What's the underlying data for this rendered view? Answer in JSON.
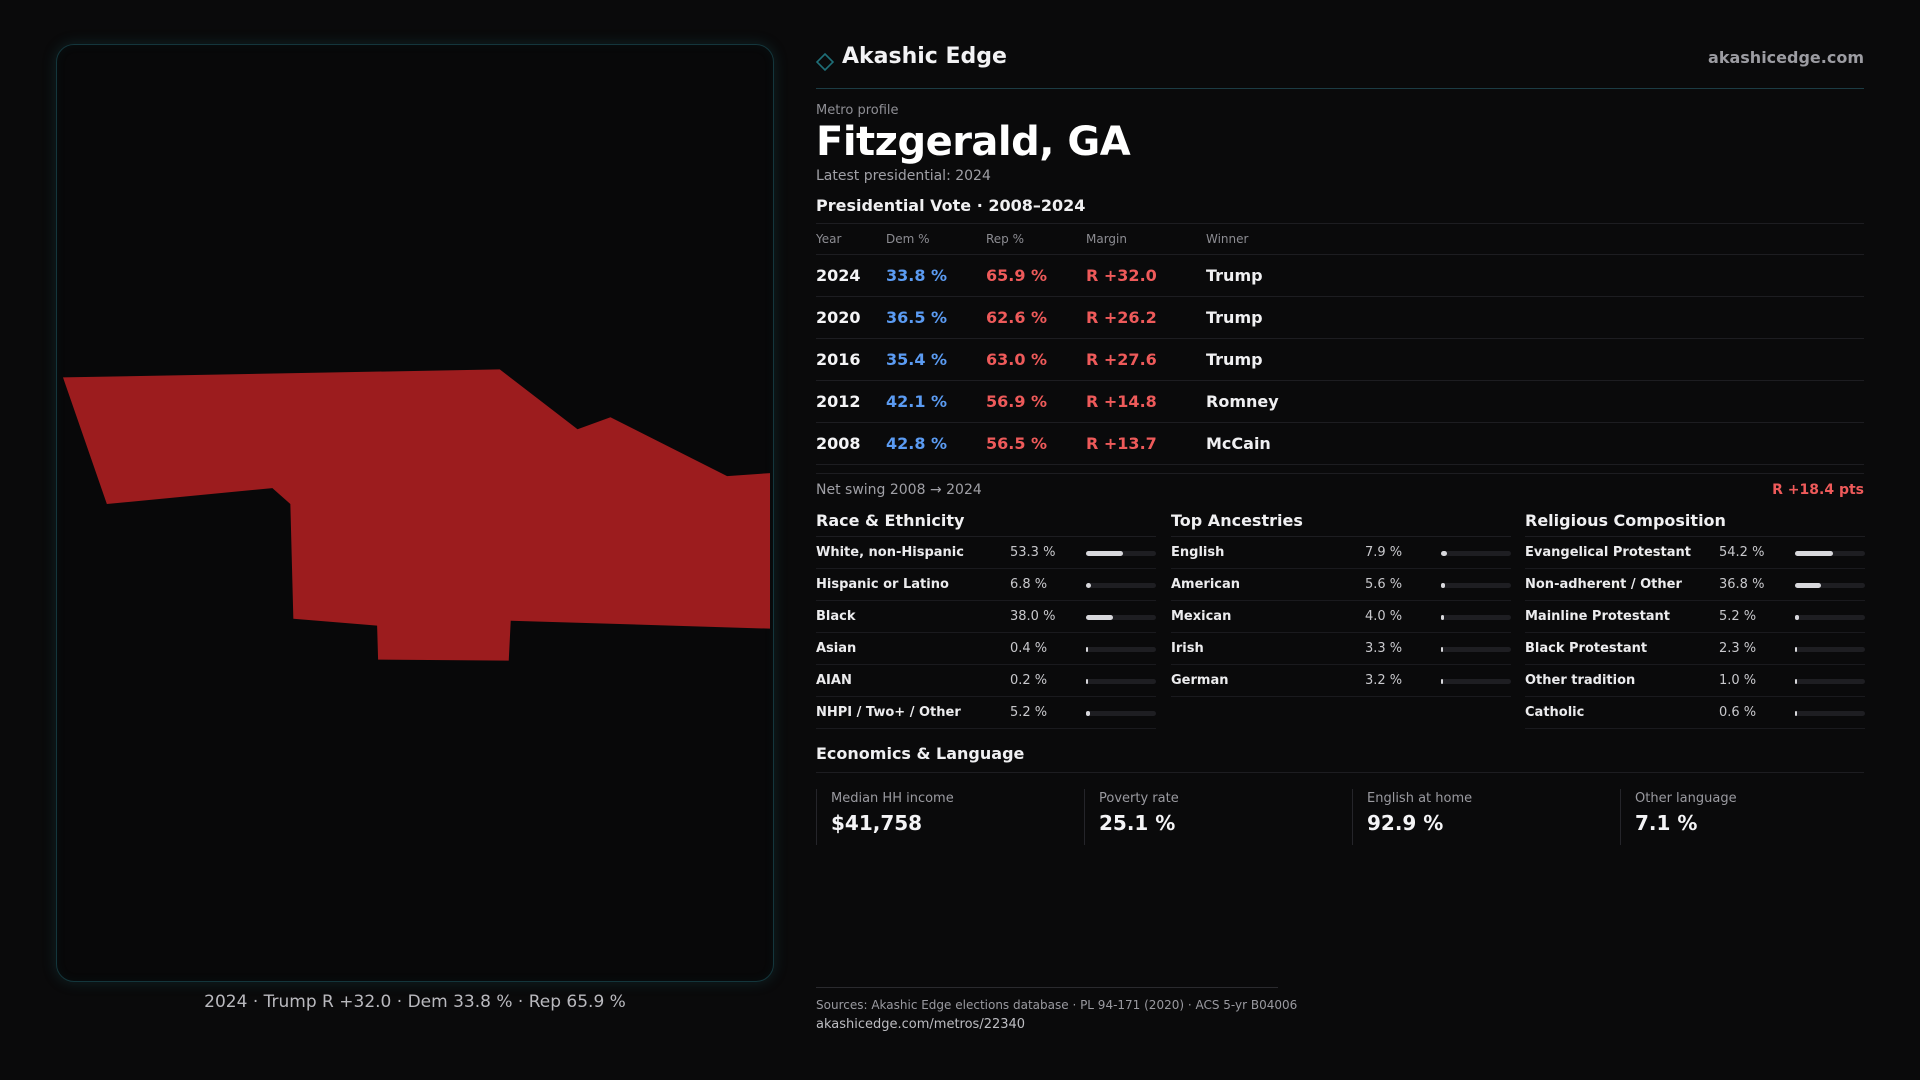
{
  "brand": {
    "name": "Akashic Edge",
    "url": "akashicedge.com",
    "accent_color": "#1f6f78",
    "icon": "diamond-outline-icon"
  },
  "map": {
    "fill_color": "#9c1c1e",
    "caption": "2024 · Trump R +32.0 · Dem 33.8 % · Rep 65.9 %"
  },
  "profile": {
    "eyebrow": "Metro profile",
    "title": "Fitzgerald, GA",
    "latest": "Latest presidential: 2024"
  },
  "presidential": {
    "title": "Presidential Vote · 2008–2024",
    "columns": [
      "Year",
      "Dem %",
      "Rep %",
      "Margin",
      "Winner"
    ],
    "rows": [
      {
        "year": "2024",
        "dem": "33.8 %",
        "rep": "65.9 %",
        "margin": "R +32.0",
        "winner": "Trump"
      },
      {
        "year": "2020",
        "dem": "36.5 %",
        "rep": "62.6 %",
        "margin": "R +26.2",
        "winner": "Trump"
      },
      {
        "year": "2016",
        "dem": "35.4 %",
        "rep": "63.0 %",
        "margin": "R +27.6",
        "winner": "Trump"
      },
      {
        "year": "2012",
        "dem": "42.1 %",
        "rep": "56.9 %",
        "margin": "R +14.8",
        "winner": "Romney"
      },
      {
        "year": "2008",
        "dem": "42.8 %",
        "rep": "56.5 %",
        "margin": "R +13.7",
        "winner": "McCain"
      }
    ],
    "swing_label": "Net swing 2008 → 2024",
    "swing_value": "R +18.4 pts"
  },
  "race": {
    "title": "Race & Ethnicity",
    "items": [
      {
        "label": "White, non-Hispanic",
        "pct": "53.3 %",
        "value": 53.3
      },
      {
        "label": "Hispanic or Latino",
        "pct": "6.8 %",
        "value": 6.8
      },
      {
        "label": "Black",
        "pct": "38.0 %",
        "value": 38.0
      },
      {
        "label": "Asian",
        "pct": "0.4 %",
        "value": 0.4
      },
      {
        "label": "AIAN",
        "pct": "0.2 %",
        "value": 0.2
      },
      {
        "label": "NHPI / Two+ / Other",
        "pct": "5.2 %",
        "value": 5.2
      }
    ]
  },
  "ancestries": {
    "title": "Top Ancestries",
    "items": [
      {
        "label": "English",
        "pct": "7.9 %",
        "value": 7.9
      },
      {
        "label": "American",
        "pct": "5.6 %",
        "value": 5.6
      },
      {
        "label": "Mexican",
        "pct": "4.0 %",
        "value": 4.0
      },
      {
        "label": "Irish",
        "pct": "3.3 %",
        "value": 3.3
      },
      {
        "label": "German",
        "pct": "3.2 %",
        "value": 3.2
      }
    ]
  },
  "religion": {
    "title": "Religious Composition",
    "items": [
      {
        "label": "Evangelical Protestant",
        "pct": "54.2 %",
        "value": 54.2
      },
      {
        "label": "Non-adherent / Other",
        "pct": "36.8 %",
        "value": 36.8
      },
      {
        "label": "Mainline Protestant",
        "pct": "5.2 %",
        "value": 5.2
      },
      {
        "label": "Black Protestant",
        "pct": "2.3 %",
        "value": 2.3
      },
      {
        "label": "Other tradition",
        "pct": "1.0 %",
        "value": 1.0
      },
      {
        "label": "Catholic",
        "pct": "0.6 %",
        "value": 0.6
      }
    ]
  },
  "economics": {
    "title": "Economics & Language",
    "cards": [
      {
        "label": "Median HH income",
        "value": "$41,758"
      },
      {
        "label": "Poverty rate",
        "value": "25.1 %"
      },
      {
        "label": "English at home",
        "value": "92.9 %"
      },
      {
        "label": "Other language",
        "value": "7.1 %"
      }
    ]
  },
  "footer": {
    "sources": "Sources: Akashic Edge elections database · PL 94-171 (2020) · ACS 5-yr B04006",
    "url": "akashicedge.com/metros/22340"
  }
}
